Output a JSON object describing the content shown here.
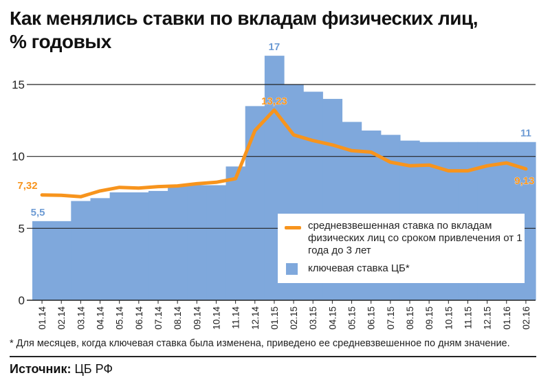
{
  "title_line1": "Как менялись ставки по вкладам физических лиц,",
  "title_line2": "% годовых",
  "footnote": "* Для месяцев, когда ключевая ставка была изменена, приведено ее средневзвешенное по дням значение.",
  "source_label": "Источник:",
  "source_value": "ЦБ РФ",
  "legend": {
    "line_label": "средневзвешенная ставка по вкладам физических лиц со сроком привлечения от 1 года до 3 лет",
    "bar_label": "ключевая ставка ЦБ*"
  },
  "colors": {
    "bars": "#7fa8dc",
    "line": "#f7941d",
    "bar_label": "#6d9bd4",
    "line_label": "#f7941d",
    "grid": "#222222"
  },
  "chart_data": {
    "type": "bar",
    "categories": [
      "01.14",
      "02.14",
      "03.14",
      "04.14",
      "05.14",
      "06.14",
      "07.14",
      "08.14",
      "09.14",
      "10.14",
      "11.14",
      "12.14",
      "01.15",
      "02.15",
      "03.15",
      "04.15",
      "05.15",
      "06.15",
      "07.15",
      "08.15",
      "09.15",
      "10.15",
      "11.15",
      "12.15",
      "01.16",
      "02.16"
    ],
    "ylim": [
      0,
      17
    ],
    "yticks": [
      0,
      5,
      10,
      15
    ],
    "series": [
      {
        "name": "ключевая ставка ЦБ*",
        "type": "bar",
        "values": [
          5.5,
          5.5,
          6.9,
          7.1,
          7.5,
          7.5,
          7.6,
          8.0,
          8.0,
          8.0,
          9.3,
          13.5,
          17.0,
          15.0,
          14.5,
          14.0,
          12.4,
          11.8,
          11.5,
          11.1,
          11.0,
          11.0,
          11.0,
          11.0,
          11.0,
          11.0
        ]
      },
      {
        "name": "средневзвешенная ставка по вкладам физических лиц со сроком привлечения от 1 года до 3 лет",
        "type": "line",
        "values": [
          7.32,
          7.3,
          7.2,
          7.6,
          7.85,
          7.8,
          7.9,
          7.95,
          8.1,
          8.2,
          8.45,
          11.8,
          13.23,
          11.5,
          11.1,
          10.8,
          10.4,
          10.3,
          9.6,
          9.35,
          9.4,
          9.0,
          9.0,
          9.35,
          9.55,
          9.13
        ]
      }
    ],
    "annotations": [
      {
        "series": "bar",
        "index": 0,
        "label": "5,5"
      },
      {
        "series": "bar",
        "index": 12,
        "label": "17"
      },
      {
        "series": "bar",
        "index": 25,
        "label": "11"
      },
      {
        "series": "line",
        "index": 0,
        "label": "7,32"
      },
      {
        "series": "line",
        "index": 12,
        "label": "13,23"
      },
      {
        "series": "line",
        "index": 25,
        "label": "9,13"
      }
    ]
  }
}
